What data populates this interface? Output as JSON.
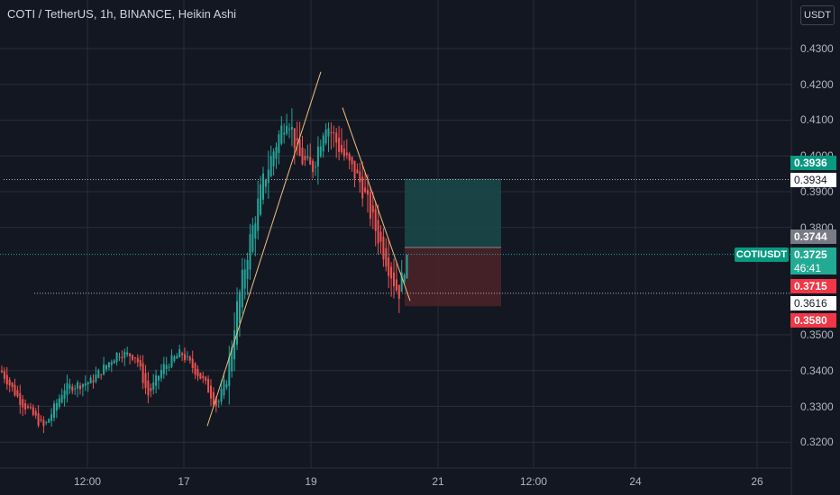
{
  "header": {
    "title": "COTI / TetherUS, 1h, BINANCE, Heikin Ashi",
    "currency": "USDT"
  },
  "price_axis": {
    "labels": [
      "0.4300",
      "0.4200",
      "0.4100",
      "0.4000",
      "0.3900",
      "0.3800",
      "0.3500",
      "0.3400",
      "0.3300",
      "0.3200"
    ],
    "values": [
      0.43,
      0.42,
      0.41,
      0.4,
      0.39,
      0.38,
      0.35,
      0.34,
      0.33,
      0.32
    ]
  },
  "time_axis": {
    "labels": [
      "12:00",
      "17",
      "19",
      "21",
      "12:00",
      "24",
      "26"
    ]
  },
  "price_tags": {
    "target": "0.3936",
    "line_upper": "0.3934",
    "entry": "0.3744",
    "current": "0.3725",
    "countdown": "46:41",
    "stop_area": "0.3715",
    "line_lower": "0.3616",
    "stop": "0.3580"
  },
  "symbol_tag": "COTIUSDT",
  "colors": {
    "background": "#131722",
    "up": "#26a69a",
    "down": "#ef5350",
    "grid": "#2a2e39",
    "trendline": "#f0c27b",
    "target_zone": "#1a4a4a",
    "stop_zone": "#4d2327"
  },
  "chart_data": {
    "type": "candlestick",
    "style": "Heikin Ashi",
    "symbol": "COTI / TetherUS",
    "interval": "1h",
    "exchange": "BINANCE",
    "price_range": [
      0.315,
      0.435
    ],
    "horizontal_lines": [
      0.3934,
      0.3616
    ],
    "position": {
      "entry": 0.3744,
      "target": 0.3936,
      "stop": 0.358
    },
    "trendlines": [
      {
        "from_price": 0.3245,
        "to_price": 0.4235
      },
      {
        "from_price": 0.4135,
        "to_price": 0.3595
      }
    ],
    "approx_segments": [
      {
        "phase": "start",
        "price": 0.34
      },
      {
        "phase": "low",
        "price": 0.324
      },
      {
        "phase": "consolidation",
        "price": 0.338
      },
      {
        "phase": "local-high",
        "price": 0.347
      },
      {
        "phase": "low",
        "price": 0.33
      },
      {
        "phase": "peak",
        "price": 0.42
      },
      {
        "phase": "dip",
        "price": 0.396
      },
      {
        "phase": "second-peak",
        "price": 0.419
      },
      {
        "phase": "decline-low",
        "price": 0.3605
      },
      {
        "phase": "last",
        "price": 0.3725
      }
    ]
  }
}
